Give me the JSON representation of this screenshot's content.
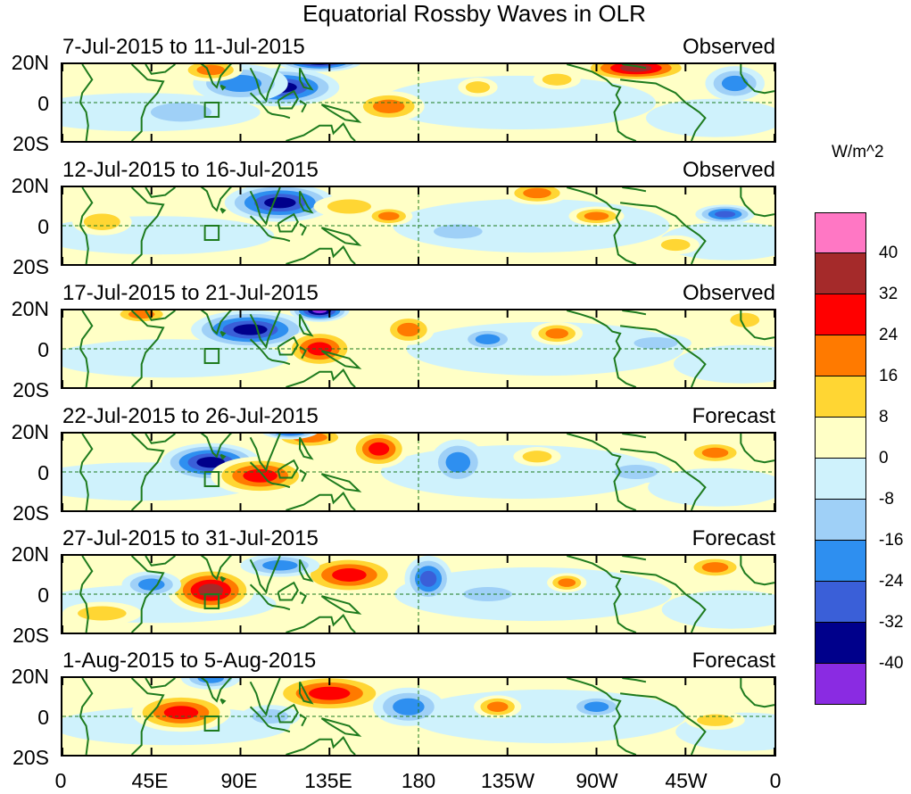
{
  "title": "Equatorial Rossby Waves in OLR",
  "units": "W/m^2",
  "y_ticks": [
    "20N",
    "0",
    "20S"
  ],
  "x_ticks": [
    "0",
    "45E",
    "90E",
    "135E",
    "180",
    "135W",
    "90W",
    "45W",
    "0"
  ],
  "panels": [
    {
      "date_range": "7-Jul-2015 to 11-Jul-2015",
      "kind": "Observed"
    },
    {
      "date_range": "12-Jul-2015 to 16-Jul-2015",
      "kind": "Observed"
    },
    {
      "date_range": "17-Jul-2015 to 21-Jul-2015",
      "kind": "Observed"
    },
    {
      "date_range": "22-Jul-2015 to 26-Jul-2015",
      "kind": "Forecast"
    },
    {
      "date_range": "27-Jul-2015 to 31-Jul-2015",
      "kind": "Forecast"
    },
    {
      "date_range": "1-Aug-2015 to 5-Aug-2015",
      "kind": "Forecast"
    }
  ],
  "colorbar": {
    "labels": [
      "40",
      "32",
      "24",
      "16",
      "8",
      "0",
      "-8",
      "-16",
      "-24",
      "-32",
      "-40"
    ],
    "colors": [
      "#ff77c4",
      "#a52a2a",
      "#ff0000",
      "#ff7a00",
      "#ffd633",
      "#ffffc6",
      "#cff2fc",
      "#9fd0f7",
      "#2e8ff0",
      "#3a5fd8",
      "#00008b",
      "#8a2be2"
    ]
  },
  "anomalies": [
    [
      {
        "lon": 290,
        "lat": 18,
        "rx": 28,
        "ry": 7,
        "v": 32
      },
      {
        "lon": 130,
        "lat": 22,
        "rx": 22,
        "ry": 6,
        "v": -44
      },
      {
        "lon": 110,
        "lat": 8,
        "rx": 30,
        "ry": 10,
        "v": -34
      },
      {
        "lon": 90,
        "lat": 10,
        "rx": 24,
        "ry": 10,
        "v": -18
      },
      {
        "lon": 75,
        "lat": 17,
        "rx": 16,
        "ry": 6,
        "v": 18
      },
      {
        "lon": 165,
        "lat": -2,
        "rx": 18,
        "ry": 8,
        "v": 20
      },
      {
        "lon": 340,
        "lat": 10,
        "rx": 15,
        "ry": 9,
        "v": -18
      },
      {
        "lon": 210,
        "lat": 8,
        "rx": 10,
        "ry": 5,
        "v": 14
      },
      {
        "lon": 250,
        "lat": 12,
        "rx": 12,
        "ry": 5,
        "v": 12
      },
      {
        "lon": 60,
        "lat": -5,
        "rx": 25,
        "ry": 8,
        "v": -10
      }
    ],
    [
      {
        "lon": 110,
        "lat": 12,
        "rx": 28,
        "ry": 10,
        "v": -36
      },
      {
        "lon": 145,
        "lat": 10,
        "rx": 18,
        "ry": 6,
        "v": 14
      },
      {
        "lon": 165,
        "lat": 5,
        "rx": 12,
        "ry": 5,
        "v": 20
      },
      {
        "lon": 240,
        "lat": 17,
        "rx": 16,
        "ry": 6,
        "v": 18
      },
      {
        "lon": 270,
        "lat": 5,
        "rx": 14,
        "ry": 5,
        "v": 20
      },
      {
        "lon": 335,
        "lat": 6,
        "rx": 15,
        "ry": 5,
        "v": -24
      },
      {
        "lon": 20,
        "lat": 2,
        "rx": 15,
        "ry": 7,
        "v": 12
      },
      {
        "lon": 200,
        "lat": -3,
        "rx": 20,
        "ry": 6,
        "v": -9
      },
      {
        "lon": 310,
        "lat": -10,
        "rx": 12,
        "ry": 5,
        "v": 10
      }
    ],
    [
      {
        "lon": 95,
        "lat": 10,
        "rx": 30,
        "ry": 10,
        "v": -36
      },
      {
        "lon": 130,
        "lat": 20,
        "rx": 15,
        "ry": 6,
        "v": -42
      },
      {
        "lon": 130,
        "lat": 0,
        "rx": 18,
        "ry": 10,
        "v": 26
      },
      {
        "lon": 175,
        "lat": 10,
        "rx": 13,
        "ry": 8,
        "v": 20
      },
      {
        "lon": 40,
        "lat": 18,
        "rx": 15,
        "ry": 5,
        "v": 18
      },
      {
        "lon": 250,
        "lat": 8,
        "rx": 13,
        "ry": 6,
        "v": 18
      },
      {
        "lon": 215,
        "lat": 5,
        "rx": 14,
        "ry": 6,
        "v": -16
      },
      {
        "lon": 345,
        "lat": 15,
        "rx": 12,
        "ry": 6,
        "v": 10
      },
      {
        "lon": 300,
        "lat": 3,
        "rx": 18,
        "ry": 5,
        "v": -10
      }
    ],
    [
      {
        "lon": 75,
        "lat": 5,
        "rx": 25,
        "ry": 10,
        "v": -32
      },
      {
        "lon": 100,
        "lat": -2,
        "rx": 25,
        "ry": 10,
        "v": 30
      },
      {
        "lon": 160,
        "lat": 12,
        "rx": 15,
        "ry": 10,
        "v": 30
      },
      {
        "lon": 200,
        "lat": 5,
        "rx": 14,
        "ry": 12,
        "v": -18
      },
      {
        "lon": 125,
        "lat": 18,
        "rx": 20,
        "ry": 6,
        "v": 16
      },
      {
        "lon": 115,
        "lat": 22,
        "rx": 15,
        "ry": 5,
        "v": -38
      },
      {
        "lon": 240,
        "lat": 8,
        "rx": 12,
        "ry": 5,
        "v": 12
      },
      {
        "lon": 330,
        "lat": 10,
        "rx": 15,
        "ry": 6,
        "v": 16
      },
      {
        "lon": 290,
        "lat": 0,
        "rx": 18,
        "ry": 6,
        "v": -10
      }
    ],
    [
      {
        "lon": 75,
        "lat": 2,
        "rx": 22,
        "ry": 12,
        "v": 34
      },
      {
        "lon": 145,
        "lat": 10,
        "rx": 25,
        "ry": 10,
        "v": 26
      },
      {
        "lon": 185,
        "lat": 8,
        "rx": 12,
        "ry": 12,
        "v": -24
      },
      {
        "lon": 110,
        "lat": 15,
        "rx": 20,
        "ry": 6,
        "v": -18
      },
      {
        "lon": 45,
        "lat": 5,
        "rx": 15,
        "ry": 7,
        "v": -16
      },
      {
        "lon": 330,
        "lat": 14,
        "rx": 15,
        "ry": 6,
        "v": 18
      },
      {
        "lon": 255,
        "lat": 6,
        "rx": 10,
        "ry": 5,
        "v": 16
      },
      {
        "lon": 215,
        "lat": 0,
        "rx": 20,
        "ry": 6,
        "v": -14
      },
      {
        "lon": 20,
        "lat": -10,
        "rx": 20,
        "ry": 6,
        "v": 8
      }
    ],
    [
      {
        "lon": 60,
        "lat": 2,
        "rx": 25,
        "ry": 10,
        "v": 24
      },
      {
        "lon": 135,
        "lat": 12,
        "rx": 30,
        "ry": 10,
        "v": 24
      },
      {
        "lon": 175,
        "lat": 5,
        "rx": 18,
        "ry": 10,
        "v": -18
      },
      {
        "lon": 220,
        "lat": 5,
        "rx": 12,
        "ry": 6,
        "v": 18
      },
      {
        "lon": 270,
        "lat": 5,
        "rx": 14,
        "ry": 6,
        "v": -22
      },
      {
        "lon": 75,
        "lat": 20,
        "rx": 15,
        "ry": 6,
        "v": -18
      },
      {
        "lon": 330,
        "lat": -2,
        "rx": 15,
        "ry": 5,
        "v": 10
      },
      {
        "lon": 105,
        "lat": 0,
        "rx": 15,
        "ry": 6,
        "v": -14
      }
    ]
  ]
}
